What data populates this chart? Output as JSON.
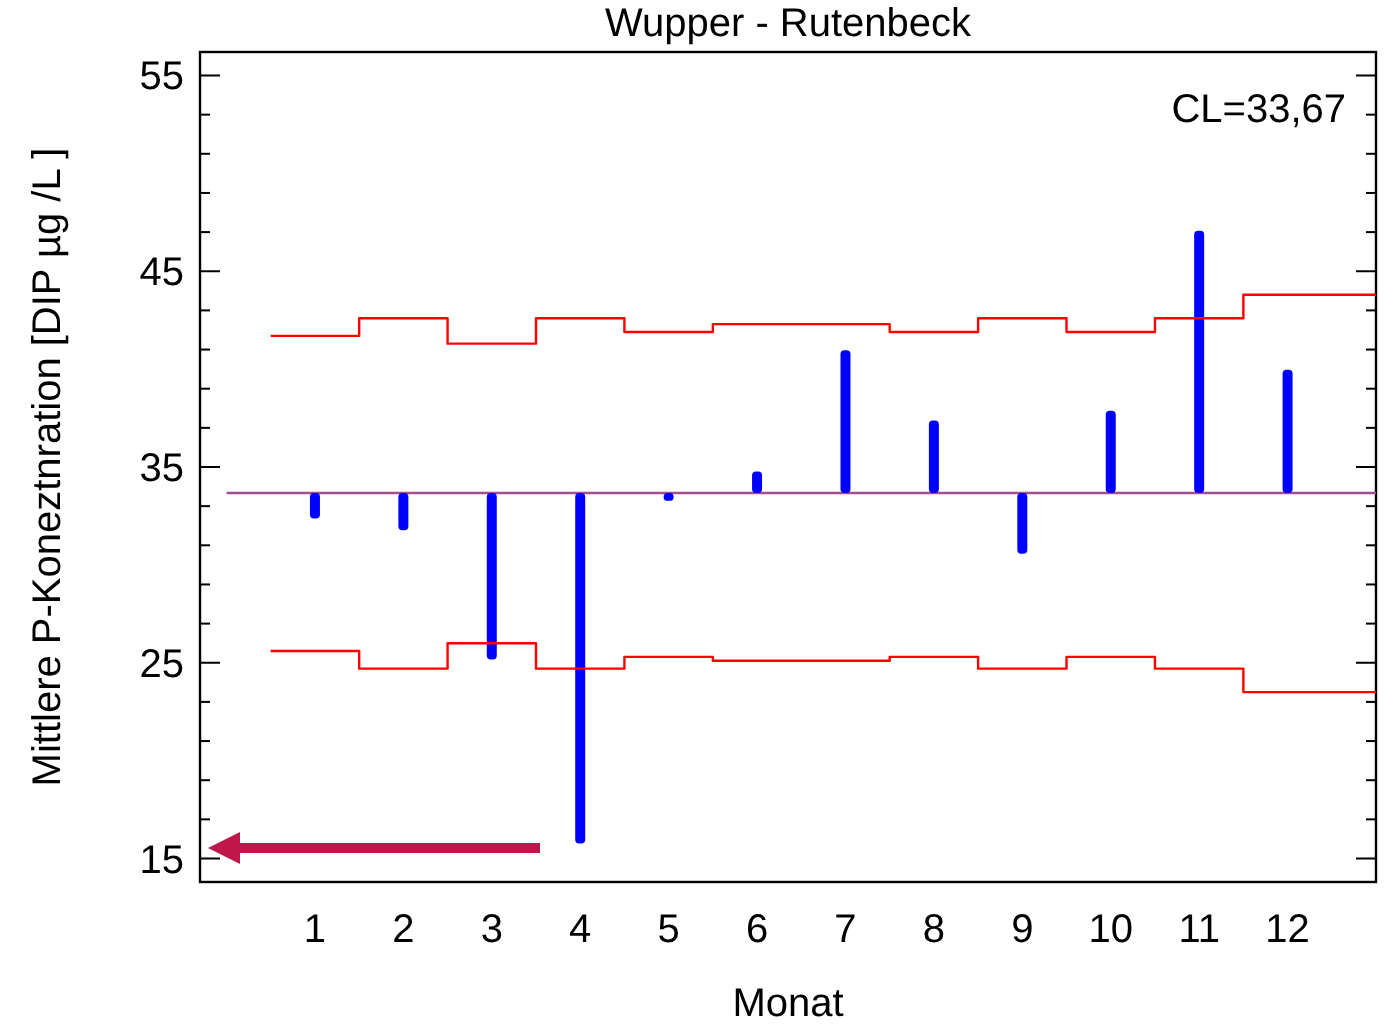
{
  "chart_data": {
    "type": "bar",
    "title": "Wupper - Rutenbeck",
    "xlabel": "Monat",
    "ylabel": "Mittlere P-Koneztnration [DIP µg /L ]",
    "xlim": [
      -0.3,
      13
    ],
    "xticks": [
      1,
      2,
      3,
      4,
      5,
      6,
      7,
      8,
      9,
      10,
      11,
      12
    ],
    "ylim": [
      13.8,
      56.2
    ],
    "yticks": [
      15,
      {
        "value": 17,
        "label": null
      },
      {
        "value": 19,
        "label": null
      },
      {
        "value": 21,
        "label": null
      },
      {
        "value": 23,
        "label": null
      },
      25,
      {
        "value": 27,
        "label": null
      },
      {
        "value": 29,
        "label": null
      },
      {
        "value": 31,
        "label": null
      },
      {
        "value": 33,
        "label": null
      },
      35,
      {
        "value": 37,
        "label": null
      },
      {
        "value": 39,
        "label": null
      },
      {
        "value": 41,
        "label": null
      },
      {
        "value": 43,
        "label": null
      },
      45,
      {
        "value": 47,
        "label": null
      },
      {
        "value": 49,
        "label": null
      },
      {
        "value": 51,
        "label": null
      },
      {
        "value": 53,
        "label": null
      },
      55
    ],
    "series": [
      {
        "color": "#0000ff",
        "x": [
          1,
          2,
          3,
          4,
          5,
          6,
          7,
          8,
          9,
          10,
          11,
          12
        ],
        "base": [
          33.67,
          33.67,
          33.67,
          33.67,
          33.67,
          33.67,
          33.67,
          33.67,
          33.67,
          33.67,
          33.67,
          33.67
        ],
        "values": [
          -1.3,
          -1.9,
          -8.5,
          -17.9,
          -0.4,
          1.1,
          7.3,
          3.7,
          -3.1,
          4.2,
          13.4,
          6.3
        ]
      },
      {
        "type": "step",
        "color": "#ff0000",
        "x": [
          0.5,
          1.5,
          2.5,
          3.5,
          4.5,
          5.5,
          6.5,
          7.5,
          8.5,
          9.5,
          10.5,
          11.5,
          13
        ],
        "values": [
          41.7,
          42.6,
          41.3,
          42.6,
          41.9,
          42.3,
          42.3,
          41.9,
          42.6,
          41.9,
          42.6,
          43.8,
          43.8
        ]
      },
      {
        "type": "step",
        "color": "#ff0000",
        "x": [
          0.5,
          1.5,
          2.5,
          3.5,
          4.5,
          5.5,
          6.5,
          7.5,
          8.5,
          9.5,
          10.5,
          11.5,
          13
        ],
        "values": [
          25.6,
          24.7,
          26.0,
          24.7,
          25.3,
          25.1,
          25.1,
          25.3,
          24.7,
          25.3,
          24.7,
          23.5,
          23.5
        ]
      }
    ],
    "annotations": [
      "CL=33,67"
    ],
    "ref_lines": [
      {
        "axis": "y",
        "value": 33.67,
        "color": "#a0508a"
      }
    ]
  }
}
